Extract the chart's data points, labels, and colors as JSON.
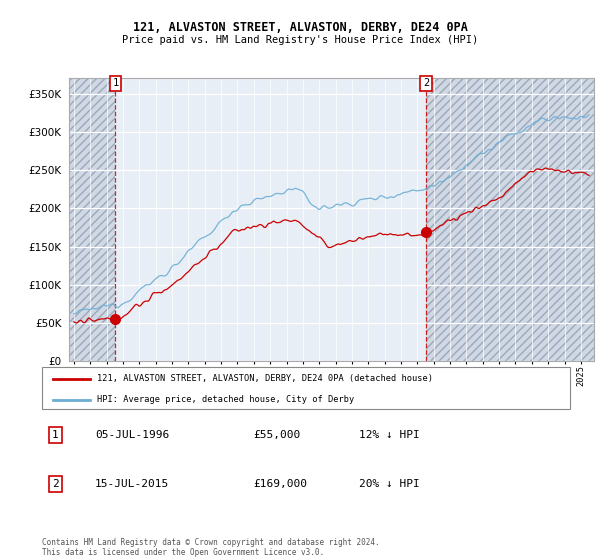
{
  "title": "121, ALVASTON STREET, ALVASTON, DERBY, DE24 0PA",
  "subtitle": "Price paid vs. HM Land Registry's House Price Index (HPI)",
  "ylim": [
    0,
    370000
  ],
  "yticks": [
    0,
    50000,
    100000,
    150000,
    200000,
    250000,
    300000,
    350000
  ],
  "sale1": {
    "date_num": 1996.54,
    "price": 55000,
    "label": "1"
  },
  "sale2": {
    "date_num": 2015.54,
    "price": 169000,
    "label": "2"
  },
  "legend_entries": [
    "121, ALVASTON STREET, ALVASTON, DERBY, DE24 0PA (detached house)",
    "HPI: Average price, detached house, City of Derby"
  ],
  "table_rows": [
    {
      "num": "1",
      "date": "05-JUL-1996",
      "price": "£55,000",
      "hpi": "12% ↓ HPI"
    },
    {
      "num": "2",
      "date": "15-JUL-2015",
      "price": "£169,000",
      "hpi": "20% ↓ HPI"
    }
  ],
  "footer": "Contains HM Land Registry data © Crown copyright and database right 2024.\nThis data is licensed under the Open Government Licence v3.0.",
  "hpi_color": "#6baed6",
  "sale_color": "#cc0000",
  "dashed_color": "#cc0000",
  "plot_bg": "#e8eef5",
  "hatch_bg": "#d0d8e4",
  "xmin": 1993.7,
  "xmax": 2025.8
}
